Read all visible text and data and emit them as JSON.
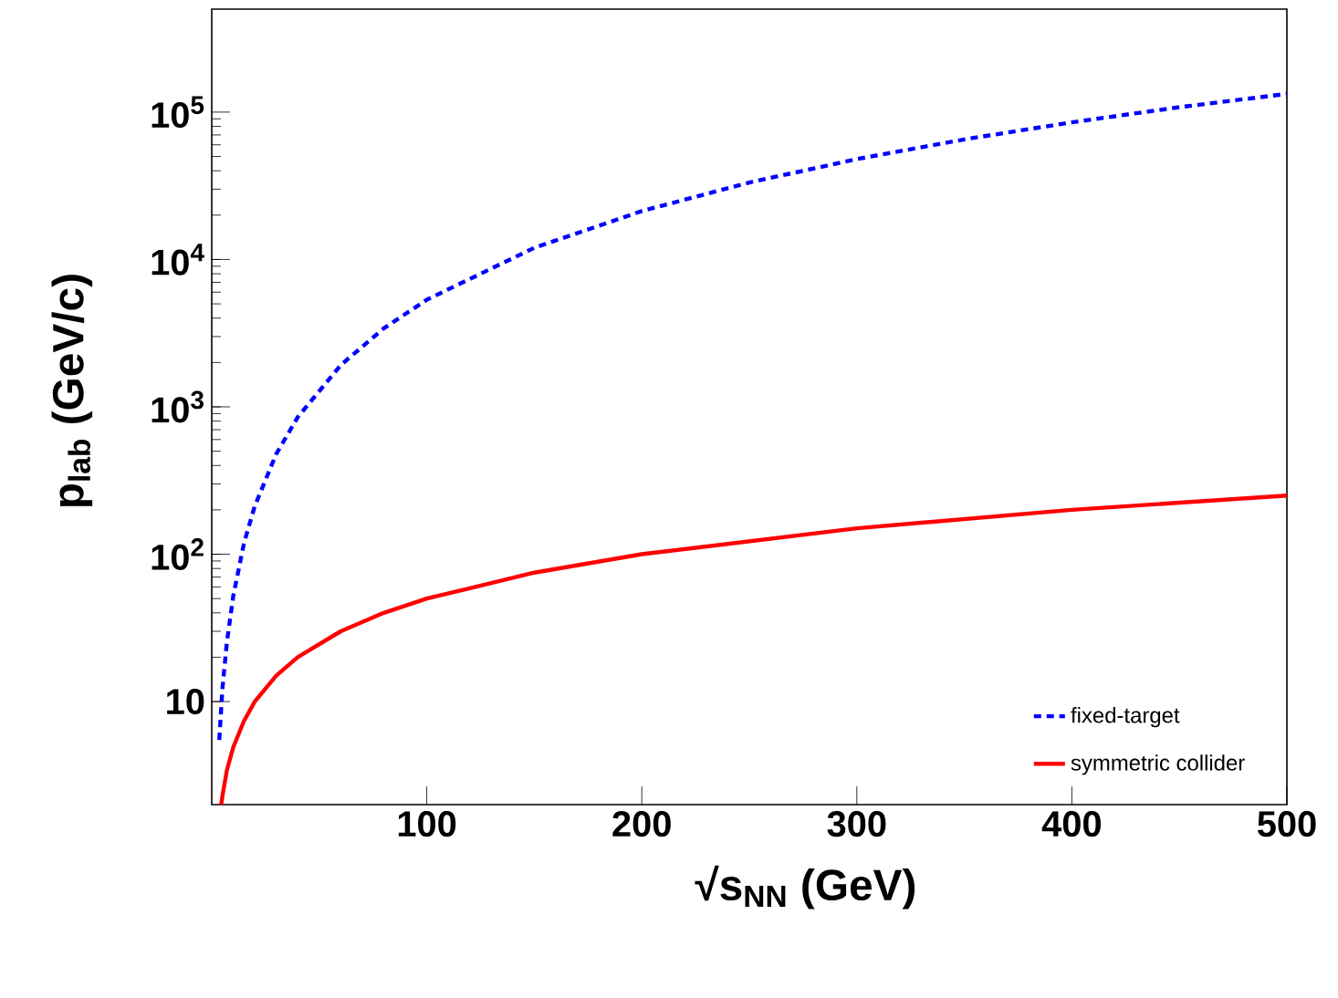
{
  "chart_data": {
    "type": "line",
    "xlabel": "√s$_{NN}$ (GeV)",
    "ylabel": "p$_{lab}$ (GeV/c)",
    "log": "y",
    "xlim": [
      0,
      500
    ],
    "ylim": [
      2,
      500000
    ],
    "xticks": [
      100,
      200,
      300,
      400,
      500
    ],
    "yticks": [
      {
        "value": 10,
        "label": "10"
      },
      {
        "value": 100,
        "label": "10$^{2}$"
      },
      {
        "value": 1000,
        "label": "10$^{3}$"
      },
      {
        "value": 10000,
        "label": "10$^{4}$"
      },
      {
        "value": 100000,
        "label": "10$^{5}$"
      }
    ],
    "legend": "bottom right",
    "grid": false,
    "series": [
      {
        "name": "fixed-target",
        "color": "#0000ff",
        "line_style": "dashed",
        "x": [
          3.5,
          5,
          7,
          10,
          15,
          20,
          30,
          40,
          60,
          80,
          100,
          150,
          200,
          250,
          300,
          350,
          400,
          450,
          500
        ],
        "values": [
          5.5,
          12.4,
          25,
          52,
          119,
          212,
          479,
          852,
          1920,
          3410,
          5330,
          12000,
          21300,
          33300,
          48000,
          65300,
          85300,
          108000,
          133000
        ]
      },
      {
        "name": "symmetric collider",
        "color": "#ff0000",
        "line_style": "solid",
        "x": [
          4.4,
          5,
          7,
          10,
          15,
          20,
          30,
          40,
          60,
          80,
          100,
          150,
          200,
          300,
          400,
          500
        ],
        "values": [
          2.0,
          2.3,
          3.4,
          4.9,
          7.4,
          10,
          15,
          20,
          30,
          40,
          50,
          75,
          100,
          150,
          200,
          250
        ]
      }
    ]
  }
}
